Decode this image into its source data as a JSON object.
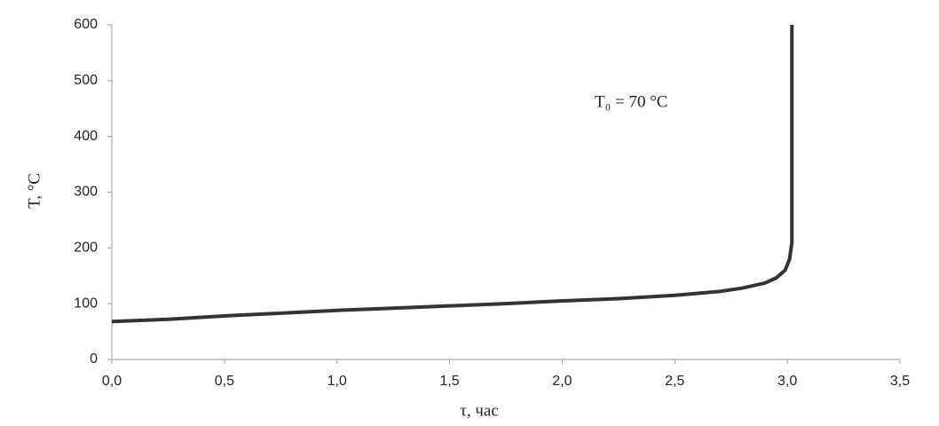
{
  "chart_data": {
    "type": "line",
    "annotation": "T₀ = 70 °C",
    "x_label": "τ, час",
    "y_label": "T, °C",
    "x": [
      0,
      0.25,
      0.5,
      0.75,
      1.0,
      1.25,
      1.5,
      1.75,
      2.0,
      2.25,
      2.5,
      2.7,
      2.8,
      2.9,
      2.95,
      2.99,
      3.01,
      3.02,
      3.02
    ],
    "series": [
      {
        "color": "#333333",
        "values": [
          68,
          72,
          78,
          83,
          88,
          92,
          96,
          100,
          105,
          109,
          115,
          122,
          128,
          137,
          146,
          160,
          180,
          210,
          600
        ]
      }
    ],
    "xlim": [
      0,
      3.5
    ],
    "xticks": [
      {
        "value": 0,
        "label": "0,0"
      },
      {
        "value": 0.5,
        "label": "0,5"
      },
      {
        "value": 1.0,
        "label": "1,0"
      },
      {
        "value": 1.5,
        "label": "1,5"
      },
      {
        "value": 2.0,
        "label": "2,0"
      },
      {
        "value": 2.5,
        "label": "2,5"
      },
      {
        "value": 3.0,
        "label": "3,0"
      },
      {
        "value": 3.5,
        "label": "3,5"
      }
    ],
    "ylim": [
      0,
      600
    ],
    "yticks": [
      0,
      100,
      200,
      300,
      400,
      500,
      600
    ],
    "grid": false
  }
}
